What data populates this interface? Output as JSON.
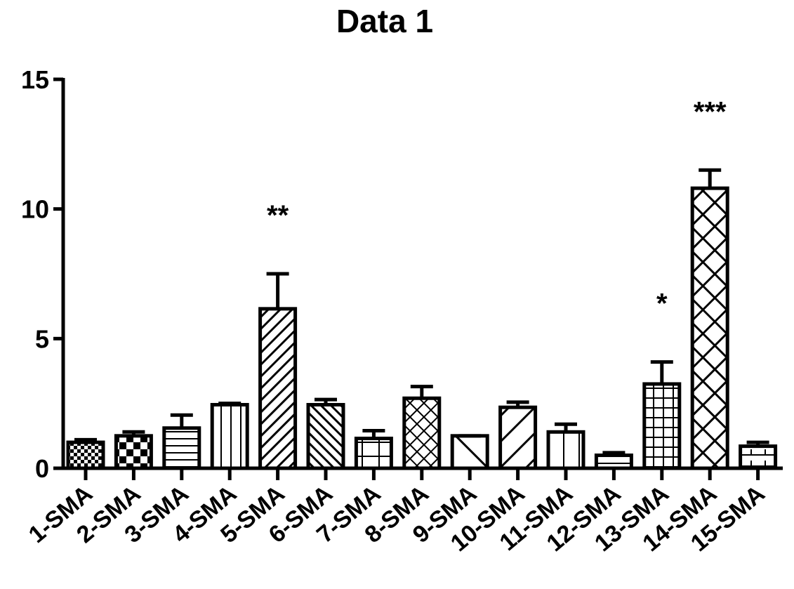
{
  "chart_data": {
    "type": "bar",
    "title": "Data 1",
    "categories": [
      "1-SMA",
      "2-SMA",
      "3-SMA",
      "4-SMA",
      "5-SMA",
      "6-SMA",
      "7-SMA",
      "8-SMA",
      "9-SMA",
      "10-SMA",
      "11-SMA",
      "12-SMA",
      "13-SMA",
      "14-SMA",
      "15-SMA"
    ],
    "values": [
      1.0,
      1.25,
      1.55,
      2.45,
      6.15,
      2.45,
      1.15,
      2.7,
      1.25,
      2.35,
      1.4,
      0.5,
      3.25,
      10.8,
      0.85
    ],
    "errors": [
      0.1,
      0.15,
      0.5,
      0.05,
      1.35,
      0.2,
      0.3,
      0.45,
      0.0,
      0.2,
      0.3,
      0.1,
      0.85,
      0.7,
      0.15
    ],
    "significance": [
      null,
      null,
      null,
      null,
      "**",
      null,
      null,
      null,
      null,
      null,
      null,
      null,
      "*",
      "***",
      null
    ],
    "color": "#000000",
    "ylim": [
      0,
      15
    ],
    "yticks": [
      0,
      5,
      10,
      15
    ],
    "grid": false
  }
}
